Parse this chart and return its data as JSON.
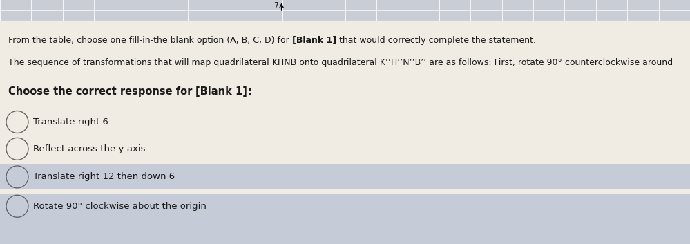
{
  "background_color": "#f0ece4",
  "top_strip_color": "#c8cdd6",
  "header_line1_normal": "From the table, choose one fill-in-the blank option (A, B, C, D) for ",
  "header_line1_bold": "[Blank 1]",
  "header_line1_end": " that would correctly complete the statement.",
  "header_line2": "The sequence of transformations that will map quadrilateral KHNB onto quadrilateral K’’H’’N’’B’’ are as follows: First, rotate 90° counterclockwise around",
  "subheader_normal": "Choose the correct response for ",
  "subheader_bold": "[Blank 1]",
  "subheader_end": ":",
  "options": [
    "Translate right 6",
    "Reflect across the y-axis",
    "Translate right 12 then down 6",
    "Rotate 90° clockwise about the origin"
  ],
  "highlighted_option_index": 2,
  "highlight_color": "#c5ccd8",
  "bottom_band_color": "#c5ccd8",
  "option_bg_color": "#f0ece4",
  "text_color": "#1a1a1a",
  "circle_color": "#666666",
  "top_bar_color": "#c8cdd6",
  "grid_line_color": "#ffffff",
  "top_number_label": "-7",
  "font_size_header": 9.0,
  "font_size_subheader": 10.5,
  "font_size_options": 9.5
}
